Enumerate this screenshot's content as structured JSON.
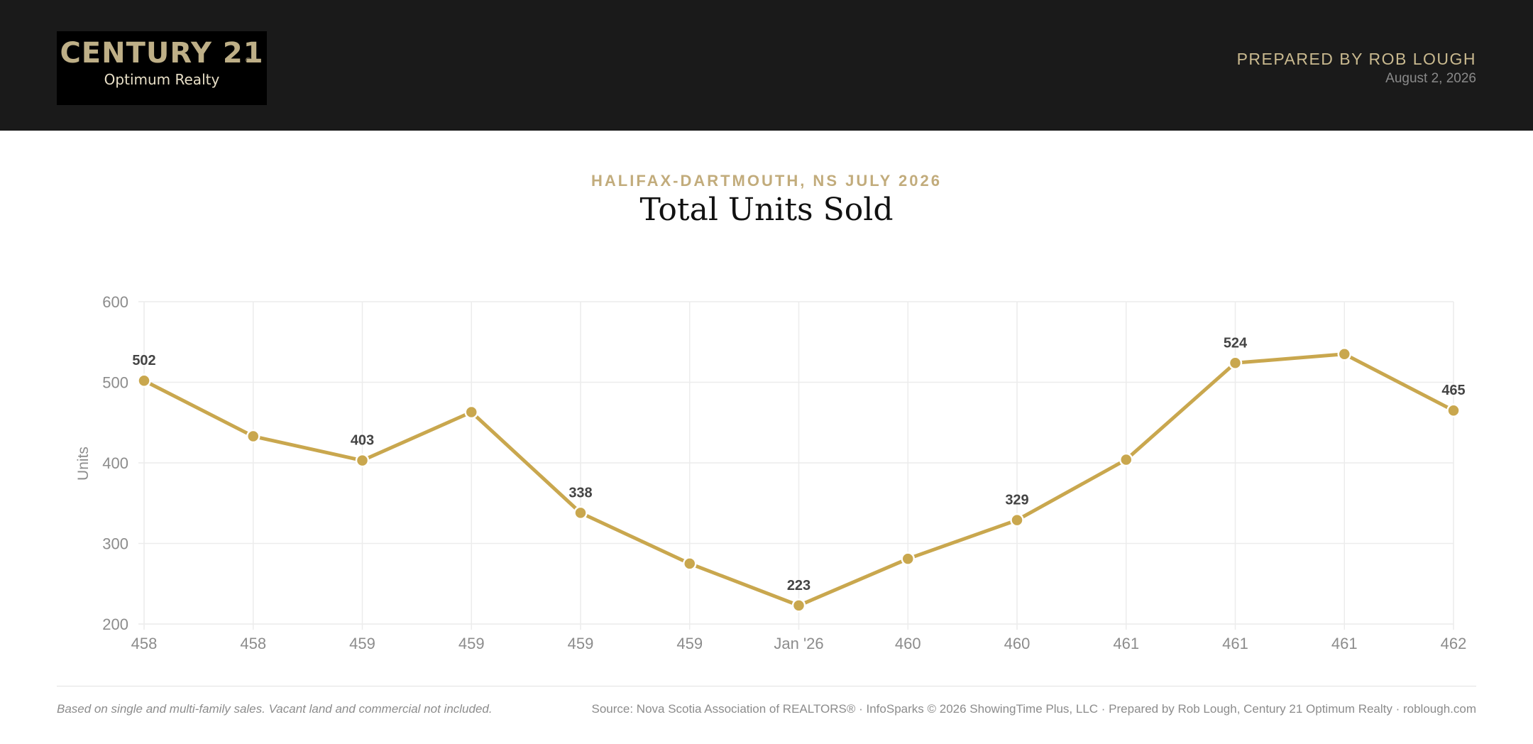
{
  "header": {
    "logo": {
      "brand": "CENTURY 21",
      "registered": "®",
      "office": "Optimum Realty"
    },
    "prepared_by": "PREPARED BY ROB LOUGH",
    "date": "August 2, 2026"
  },
  "report": {
    "subtitle": "HALIFAX-DARTMOUTH, NS JULY 2026",
    "title": "Total Units Sold"
  },
  "colors": {
    "header_bg": "#1a1a1a",
    "accent_gold": "#c9a74e",
    "logo_gold": "#beaf87",
    "text_muted": "#8c8c8c"
  },
  "chart_data": {
    "type": "line",
    "title": "Total Units Sold",
    "xlabel": "",
    "ylabel": "Units",
    "categories": [
      "458",
      "458",
      "459",
      "459",
      "459",
      "459",
      "Jan '26",
      "460",
      "460",
      "461",
      "461",
      "461",
      "462"
    ],
    "series": [
      {
        "values": [
          502,
          433,
          403,
          463,
          338,
          275,
          223,
          281,
          329,
          404,
          524,
          535,
          465
        ]
      }
    ],
    "labeled_values": [
      502,
      null,
      403,
      null,
      338,
      null,
      223,
      null,
      329,
      null,
      524,
      null,
      465
    ],
    "ylim": [
      200,
      600
    ],
    "yticks": [
      200,
      300,
      400,
      500,
      600
    ],
    "grid": true,
    "legend": "none",
    "line_color": "#c9a74e"
  },
  "footer": {
    "note": "Based on single and multi-family sales. Vacant land and commercial not included.",
    "source": "Source: Nova Scotia Association of REALTORS® · InfoSparks © 2026 ShowingTime Plus, LLC · Prepared by Rob Lough, Century 21 Optimum Realty · roblough.com"
  }
}
